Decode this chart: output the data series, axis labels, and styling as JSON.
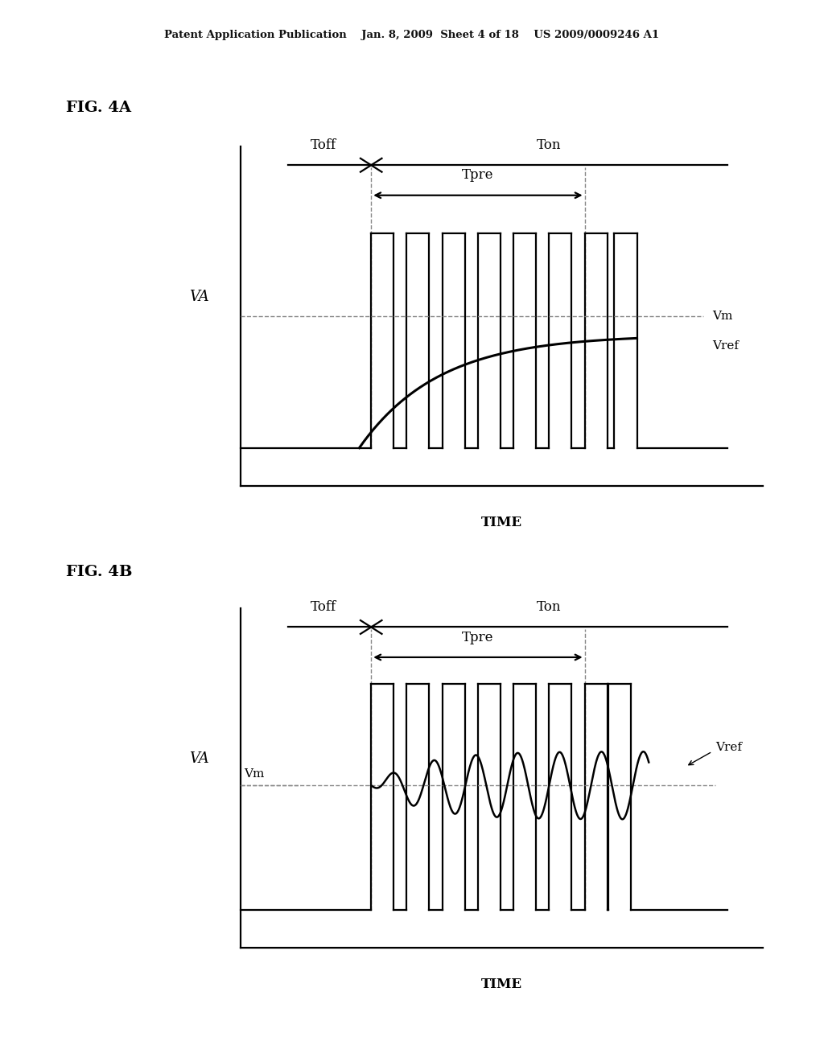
{
  "title_text": "Patent Application Publication    Jan. 8, 2009  Sheet 4 of 18    US 2009/0009246 A1",
  "fig4a_label": "FIG. 4A",
  "fig4b_label": "FIG. 4B",
  "bg_color": "#ffffff",
  "line_color": "#000000",
  "dashed_color": "#888888",
  "time_label": "TIME",
  "va_label": "VA",
  "toff_label": "Toff",
  "ton_label": "Ton",
  "tpre_label": "Tpre",
  "vm_label": "Vm",
  "vref_label": "Vref"
}
